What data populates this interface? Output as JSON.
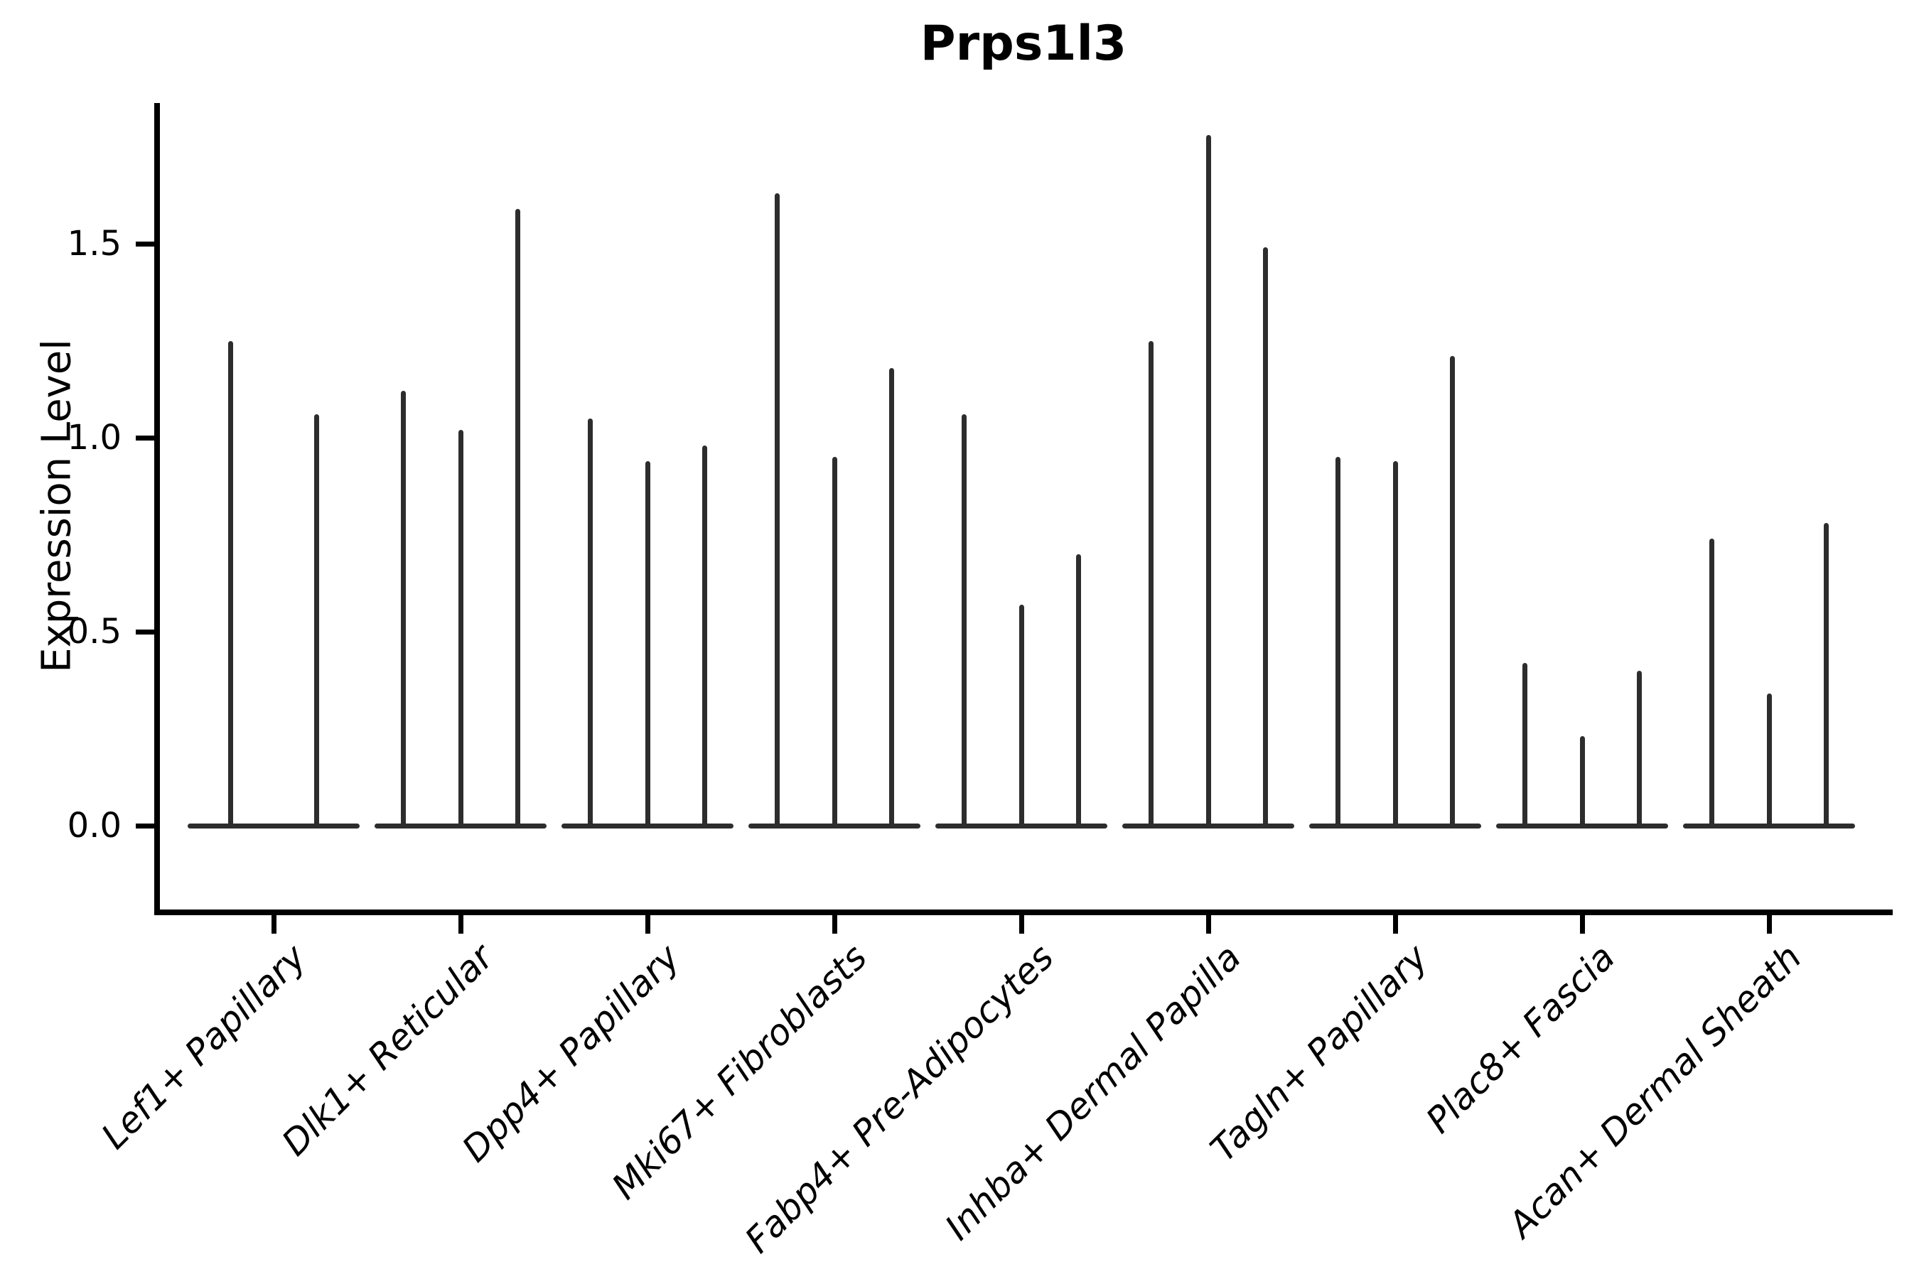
{
  "chart_data": {
    "type": "violin",
    "title": "Prps1l3",
    "xlabel": "",
    "ylabel": "Expression Level",
    "ytick_labels": [
      "0.0",
      "0.5",
      "1.0",
      "1.5"
    ],
    "ytick_values": [
      0.0,
      0.5,
      1.0,
      1.5
    ],
    "ylim": [
      -0.22,
      1.86
    ],
    "grid": false,
    "legend": "none",
    "violin_color": "#2d2d2d",
    "axis_color": "#000000",
    "categories": [
      "Lef1+ Papillary",
      "Dlk1+ Reticular",
      "Dpp4+ Papillary",
      "Mki67+ Fibroblasts",
      "Fabp4+ Pre-Adipocytes",
      "Inhba+ Dermal Papilla",
      "Tagln+ Papillary",
      "Plac8+ Fascia",
      "Acan+ Dermal Sheath"
    ],
    "groups": [
      {
        "label": "Lef1+ Papillary",
        "spike_max_values": [
          1.25,
          1.06
        ]
      },
      {
        "label": "Dlk1+ Reticular",
        "spike_max_values": [
          1.12,
          1.02,
          1.59
        ]
      },
      {
        "label": "Dpp4+ Papillary",
        "spike_max_values": [
          1.05,
          0.94,
          0.98
        ]
      },
      {
        "label": "Mki67+ Fibroblasts",
        "spike_max_values": [
          1.63,
          0.95,
          1.18
        ]
      },
      {
        "label": "Fabp4+ Pre-Adipocytes",
        "spike_max_values": [
          1.06,
          0.57,
          0.7
        ]
      },
      {
        "label": "Inhba+ Dermal Papilla",
        "spike_max_values": [
          1.25,
          1.78,
          1.49
        ]
      },
      {
        "label": "Tagln+ Papillary",
        "spike_max_values": [
          0.95,
          0.94,
          1.21
        ]
      },
      {
        "label": "Plac8+ Fascia",
        "spike_max_values": [
          0.42,
          0.23,
          0.4
        ]
      },
      {
        "label": "Acan+ Dermal Sheath",
        "spike_max_values": [
          0.74,
          0.34,
          0.78
        ]
      }
    ],
    "description_of_mark": "Each category shows collapsed violins: a flat base line at 0 with thin vertical density spikes reaching the listed max expression values."
  }
}
